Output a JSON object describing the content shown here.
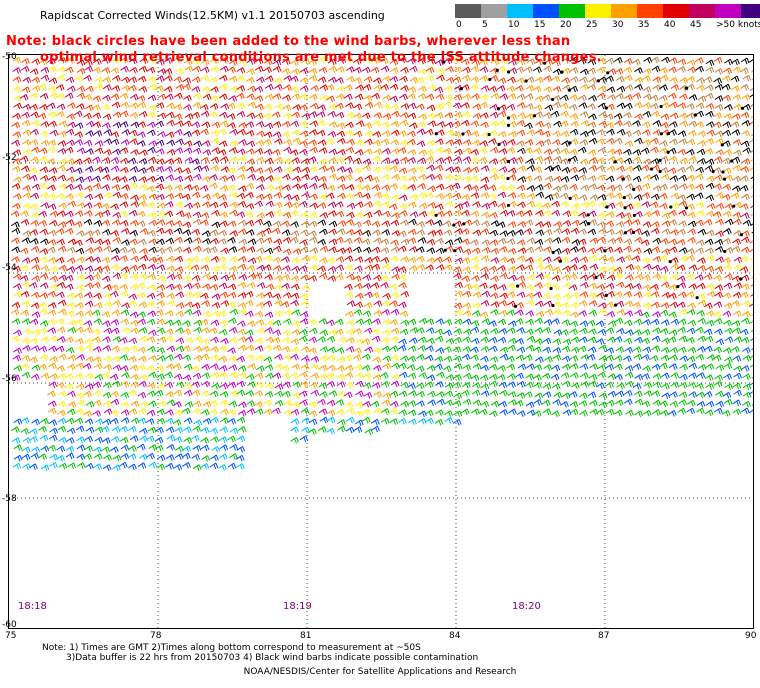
{
  "title": "Rapidscat Corrected Winds(12.5KM) v1.1 20150703 ascending",
  "note_line1": "Note: black circles have been added to the wind barbs, wherever less than",
  "note_line2": "optimal wind retrieval conditions are met due to the ISS attitude changes.",
  "colorbar": {
    "colors": [
      "#5a5a5a",
      "#a0a0a0",
      "#00bfff",
      "#0050ff",
      "#00c000",
      "#fff000",
      "#ffa000",
      "#ff4000",
      "#e00000",
      "#c00060",
      "#c000c0",
      "#400080"
    ],
    "labels": [
      "0",
      "5",
      "10",
      "15",
      "20",
      "25",
      "30",
      "35",
      "40",
      "45",
      ">50 knots"
    ]
  },
  "y_labels": [
    "-50",
    "-52",
    "-54",
    "-56",
    "-58",
    "-60"
  ],
  "x_labels": [
    "75",
    "78",
    "81",
    "84",
    "87",
    "90"
  ],
  "times": [
    "18:18",
    "18:19",
    "18:20"
  ],
  "footnote_line1": "Note: 1) Times are GMT 2)Times along bottom correspond to measurement at ~50S",
  "footnote_line2": "3)Data buffer is 22 hrs from 20150703 4) Black wind barbs indicate possible contamination",
  "credit": "NOAA/NESDIS/Center for Satellite Applications and Research"
}
